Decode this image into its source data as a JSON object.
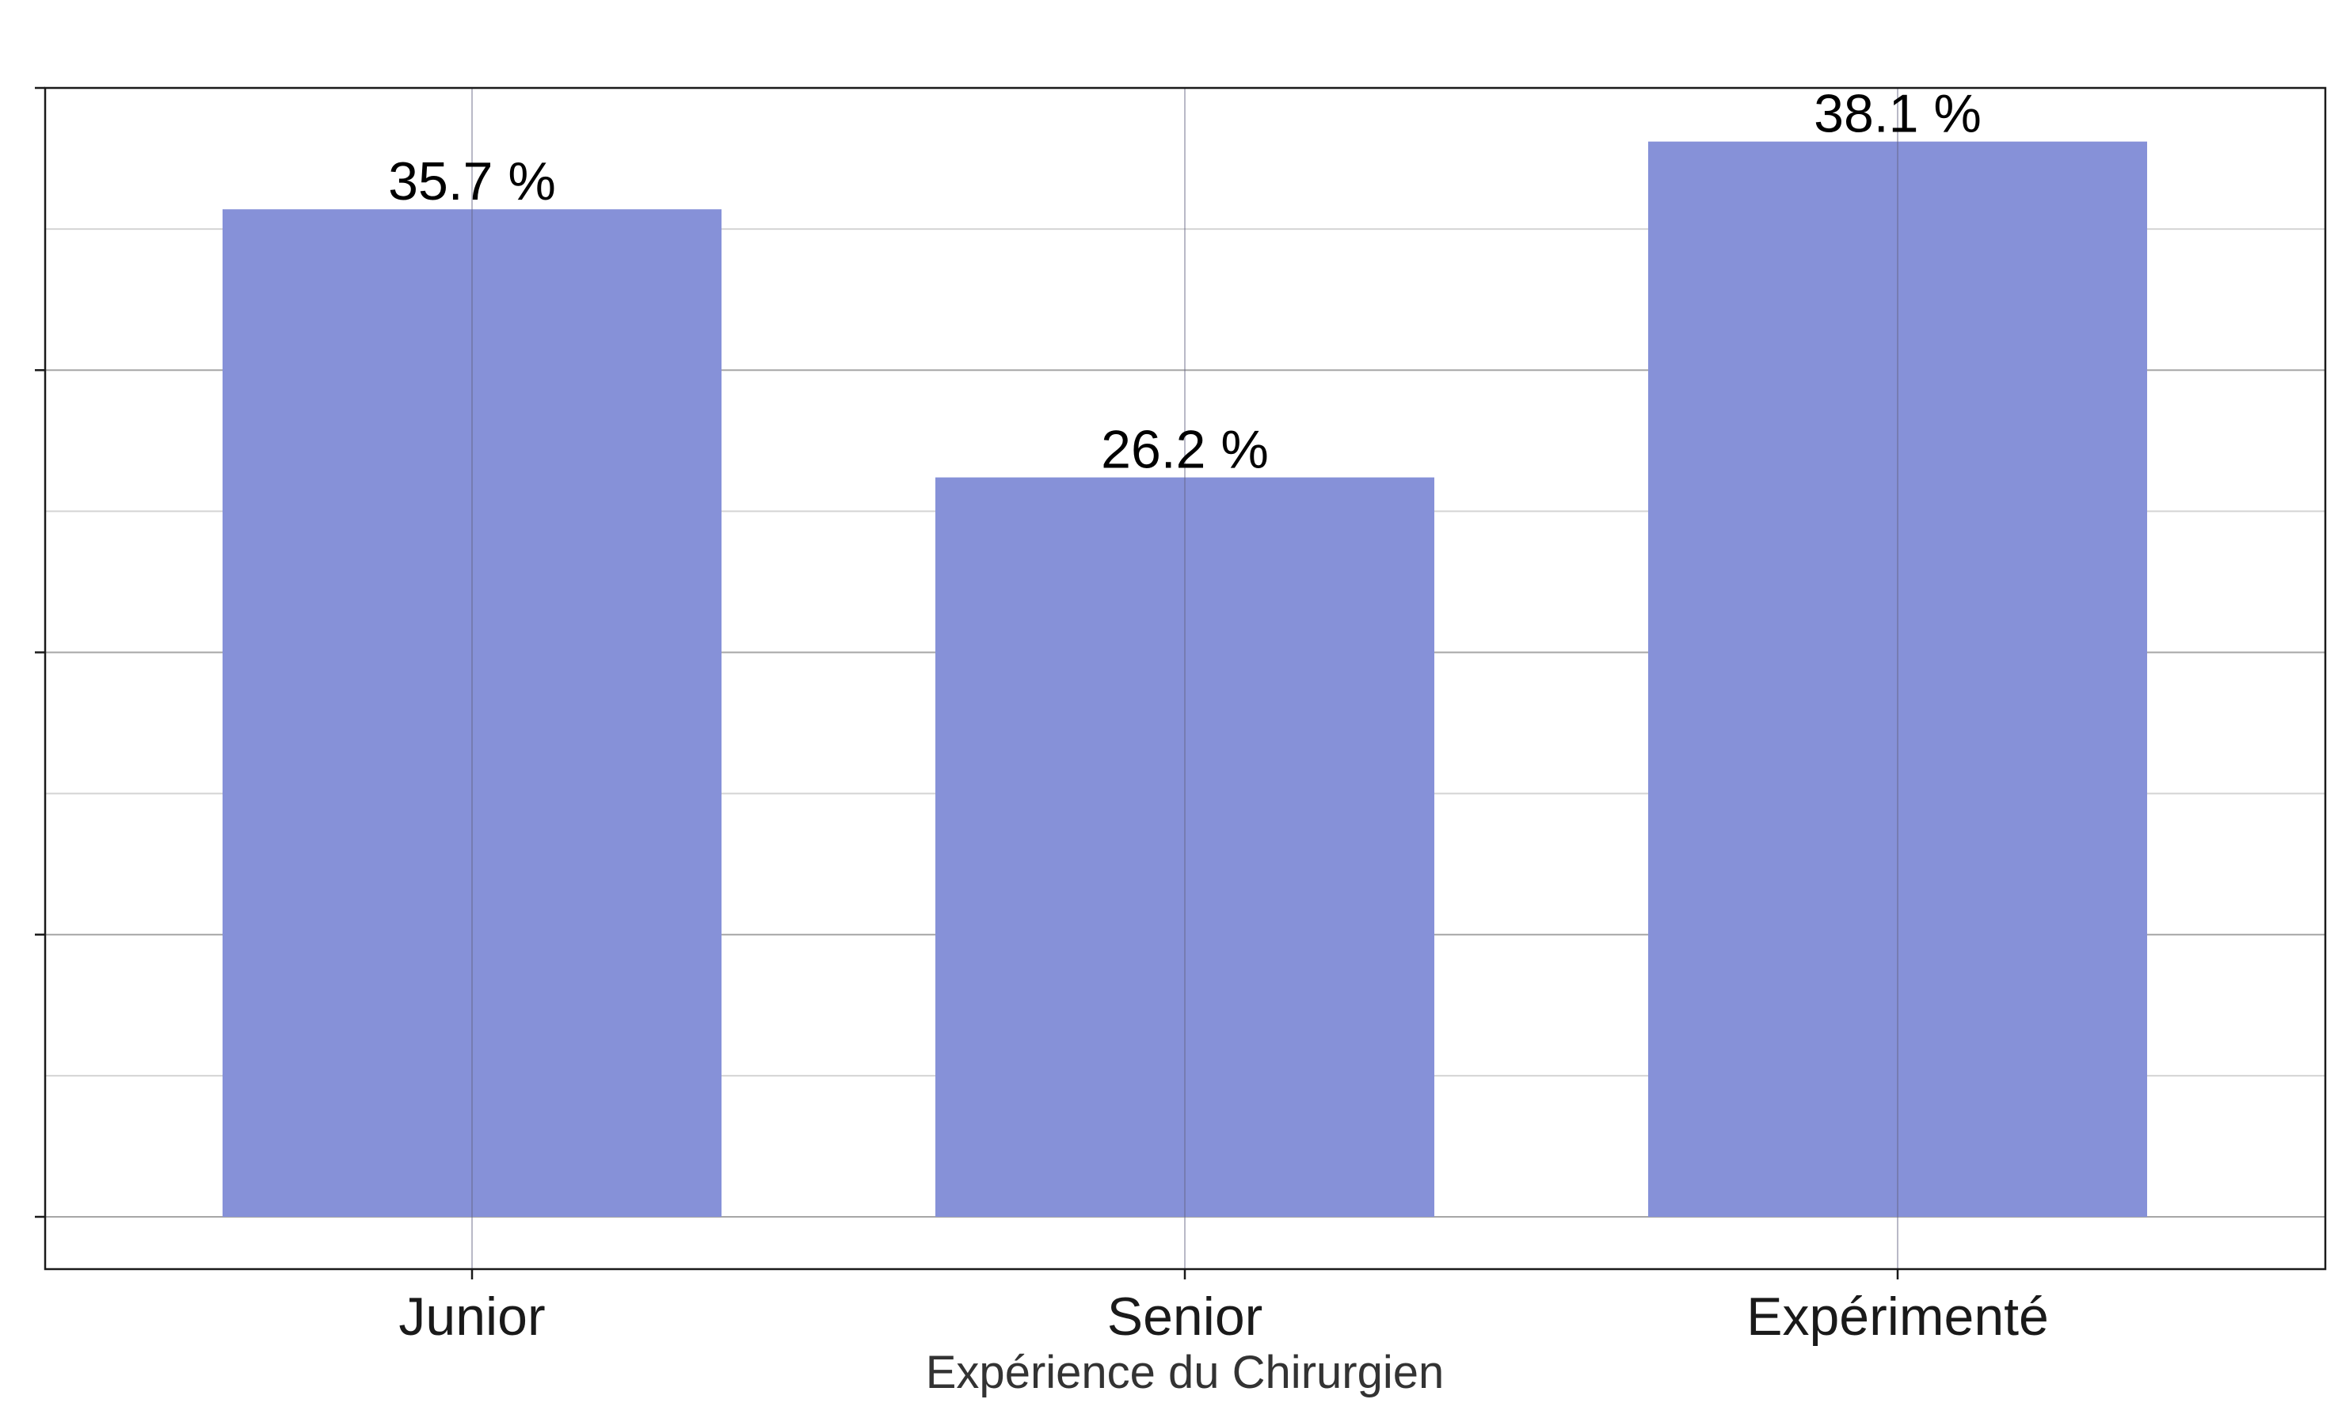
{
  "chart_data": {
    "type": "bar",
    "categories": [
      "Junior",
      "Senior",
      "Expérimenté"
    ],
    "values": [
      35.7,
      26.2,
      38.1
    ],
    "data_labels": [
      "35.7 %",
      "26.2 %",
      "38.1 %"
    ],
    "xlabel": "Expérience du Chirurgien",
    "ylabel": "",
    "ylim": [
      0,
      40
    ],
    "y_ticks": [
      0,
      10,
      20,
      30,
      40
    ],
    "y_minor_ticks": [
      5,
      15,
      25,
      35
    ],
    "y_tick_labels_shown": false,
    "grid": true,
    "bar_color": "#8691d8",
    "grid_major_color": "#a6a6a6",
    "grid_minor_color": "#d4d4d4",
    "panel_border_color": "#1a1a1a"
  }
}
